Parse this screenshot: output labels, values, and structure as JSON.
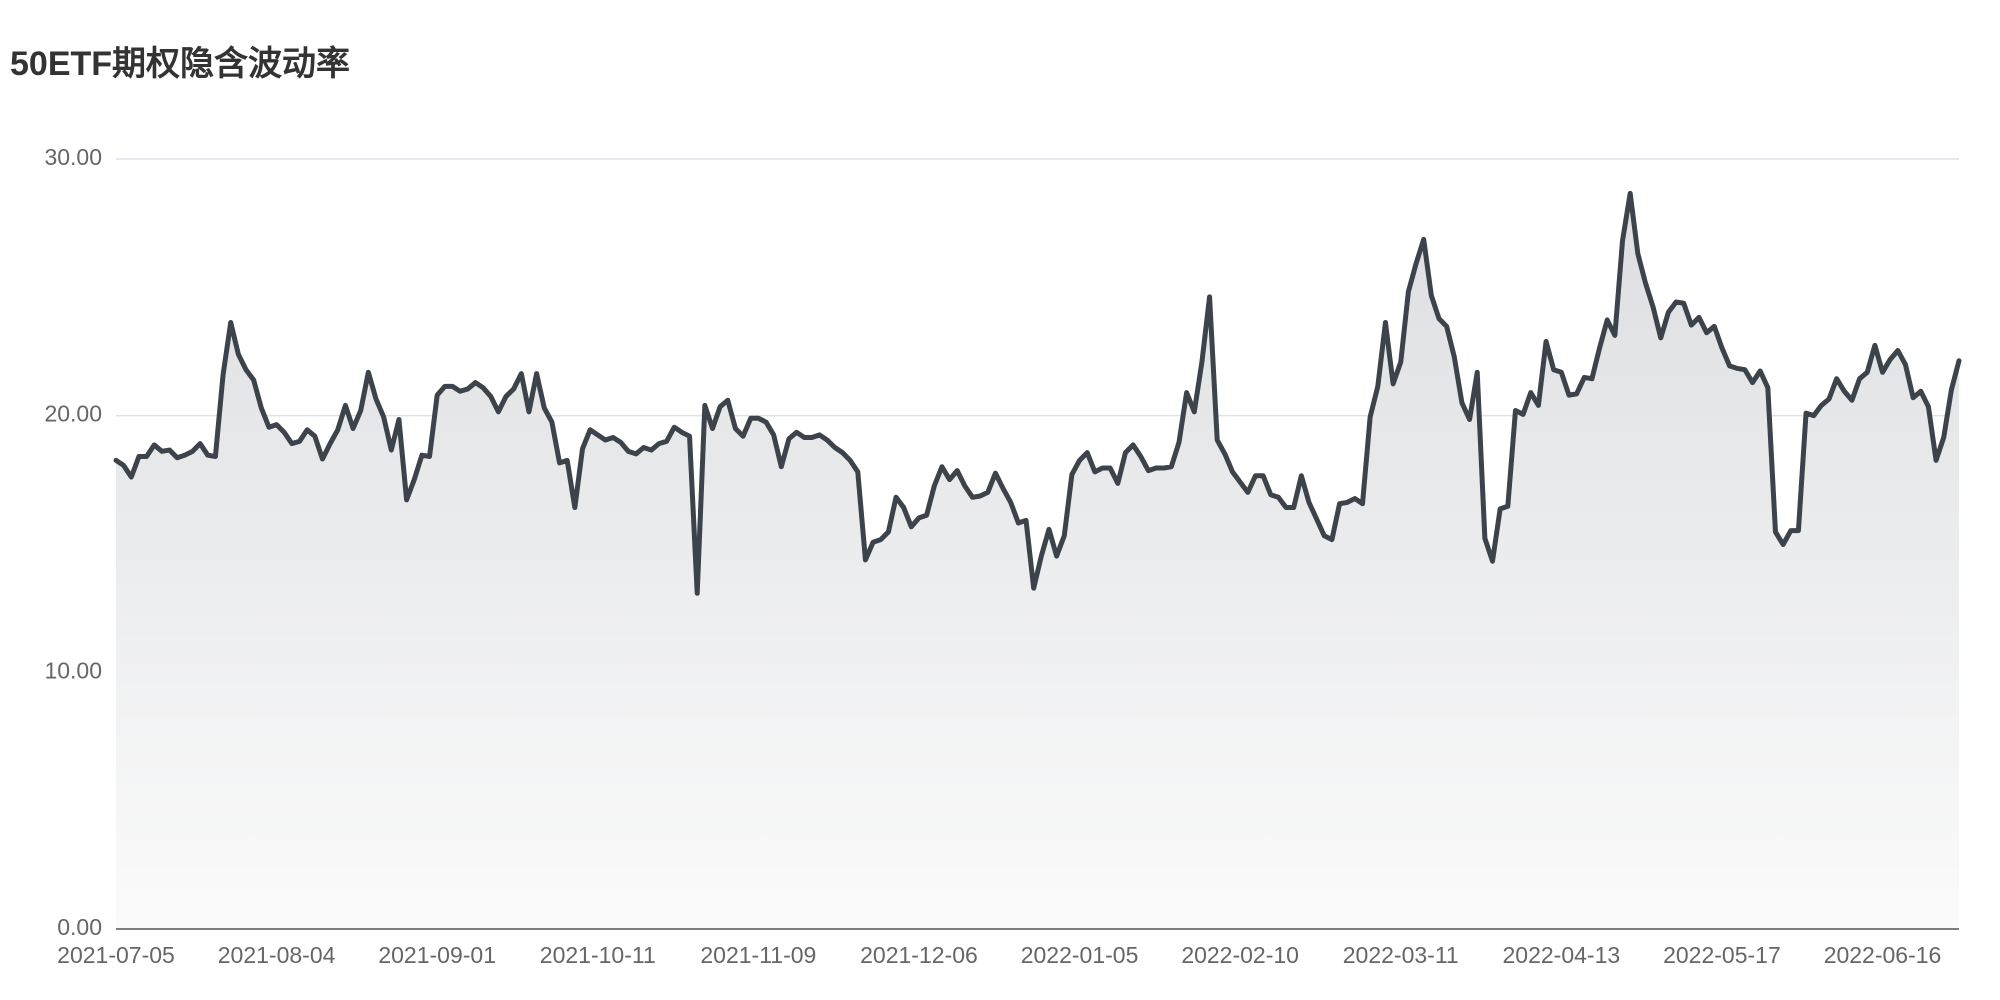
{
  "chart_data": {
    "type": "line",
    "title": "50ETF期权隐含波动率",
    "categories": [
      "2021-07-05",
      null,
      null,
      null,
      null,
      null,
      null,
      null,
      null,
      null,
      null,
      null,
      null,
      null,
      null,
      null,
      null,
      null,
      null,
      null,
      null,
      "2021-08-04",
      null,
      null,
      null,
      null,
      null,
      null,
      null,
      null,
      null,
      null,
      null,
      null,
      null,
      null,
      null,
      null,
      null,
      null,
      null,
      null,
      "2021-09-01",
      null,
      null,
      null,
      null,
      null,
      null,
      null,
      null,
      null,
      null,
      null,
      null,
      null,
      null,
      null,
      null,
      null,
      null,
      null,
      null,
      "2021-10-11",
      null,
      null,
      null,
      null,
      null,
      null,
      null,
      null,
      null,
      null,
      null,
      null,
      null,
      null,
      null,
      null,
      null,
      null,
      null,
      null,
      "2021-11-09",
      null,
      null,
      null,
      null,
      null,
      null,
      null,
      null,
      null,
      null,
      null,
      null,
      null,
      null,
      null,
      null,
      null,
      null,
      null,
      null,
      "2021-12-06",
      null,
      null,
      null,
      null,
      null,
      null,
      null,
      null,
      null,
      null,
      null,
      null,
      null,
      null,
      null,
      null,
      null,
      null,
      null,
      null,
      "2022-01-05",
      null,
      null,
      null,
      null,
      null,
      null,
      null,
      null,
      null,
      null,
      null,
      null,
      null,
      null,
      null,
      null,
      null,
      null,
      null,
      null,
      "2022-02-10",
      null,
      null,
      null,
      null,
      null,
      null,
      null,
      null,
      null,
      null,
      null,
      null,
      null,
      null,
      null,
      null,
      null,
      null,
      null,
      null,
      "2022-03-11",
      null,
      null,
      null,
      null,
      null,
      null,
      null,
      null,
      null,
      null,
      null,
      null,
      null,
      null,
      null,
      null,
      null,
      null,
      null,
      null,
      "2022-04-13",
      null,
      null,
      null,
      null,
      null,
      null,
      null,
      null,
      null,
      null,
      null,
      null,
      null,
      null,
      null,
      null,
      null,
      null,
      null,
      null,
      "2022-05-17",
      null,
      null,
      null,
      null,
      null,
      null,
      null,
      null,
      null,
      null,
      null,
      null,
      null,
      null,
      null,
      null,
      null,
      null,
      null,
      null,
      "2022-06-16",
      null,
      null,
      null,
      null,
      null,
      null,
      null,
      null,
      null,
      null
    ],
    "values": [
      18.26,
      18.06,
      17.61,
      18.41,
      18.41,
      18.86,
      18.61,
      18.66,
      18.36,
      18.46,
      18.61,
      18.91,
      18.46,
      18.41,
      21.59,
      23.63,
      22.39,
      21.79,
      21.39,
      20.3,
      19.55,
      19.65,
      19.35,
      18.91,
      19.0,
      19.45,
      19.2,
      18.31,
      18.91,
      19.45,
      20.4,
      19.5,
      20.2,
      21.69,
      20.65,
      19.95,
      18.66,
      19.85,
      16.72,
      17.51,
      18.46,
      18.41,
      20.8,
      21.14,
      21.14,
      20.95,
      21.04,
      21.29,
      21.09,
      20.75,
      20.15,
      20.75,
      21.04,
      21.64,
      20.15,
      21.64,
      20.3,
      19.75,
      18.16,
      18.26,
      16.42,
      18.71,
      19.45,
      19.25,
      19.05,
      19.15,
      18.96,
      18.61,
      18.51,
      18.76,
      18.66,
      18.91,
      19.0,
      19.55,
      19.35,
      19.2,
      13.08,
      20.4,
      19.5,
      20.35,
      20.6,
      19.5,
      19.2,
      19.9,
      19.9,
      19.75,
      19.25,
      18.01,
      19.1,
      19.35,
      19.15,
      19.15,
      19.25,
      19.05,
      18.76,
      18.56,
      18.26,
      17.81,
      14.38,
      15.07,
      15.17,
      15.47,
      16.82,
      16.42,
      15.67,
      16.02,
      16.12,
      17.26,
      18.01,
      17.51,
      17.86,
      17.26,
      16.82,
      16.87,
      17.01,
      17.76,
      17.16,
      16.62,
      15.82,
      15.92,
      13.28,
      14.53,
      15.57,
      14.53,
      15.32,
      17.71,
      18.26,
      18.56,
      17.81,
      17.96,
      17.96,
      17.36,
      18.56,
      18.86,
      18.41,
      17.86,
      17.96,
      17.96,
      18.01,
      18.96,
      20.9,
      20.15,
      22.09,
      24.63,
      19.05,
      18.51,
      17.81,
      17.41,
      17.01,
      17.66,
      17.66,
      16.92,
      16.82,
      16.42,
      16.42,
      17.66,
      16.62,
      15.97,
      15.32,
      15.17,
      16.57,
      16.62,
      16.77,
      16.57,
      19.95,
      21.14,
      23.63,
      21.24,
      22.09,
      24.83,
      25.92,
      26.87,
      24.68,
      23.78,
      23.48,
      22.29,
      20.5,
      19.85,
      21.69,
      15.22,
      14.33,
      16.37,
      16.47,
      20.2,
      20.05,
      20.9,
      20.4,
      22.89,
      21.79,
      21.69,
      20.8,
      20.85,
      21.49,
      21.44,
      22.64,
      23.73,
      23.13,
      26.82,
      28.66,
      26.32,
      25.17,
      24.23,
      23.03,
      24.03,
      24.43,
      24.38,
      23.53,
      23.83,
      23.23,
      23.48,
      22.64,
      21.94,
      21.84,
      21.79,
      21.29,
      21.74,
      21.09,
      15.47,
      14.98,
      15.52,
      15.52,
      20.1,
      20.0,
      20.4,
      20.65,
      21.44,
      20.95,
      20.6,
      21.44,
      21.69,
      22.74,
      21.69,
      22.19,
      22.54,
      21.99,
      20.7,
      20.95,
      20.35,
      18.26,
      19.15,
      21.0,
      22.14
    ],
    "color": "#3d434b",
    "area": true,
    "grid": true,
    "ylim": [
      0,
      30
    ],
    "yticks": [
      {
        "value": 0,
        "label": "0.00"
      },
      {
        "value": 10,
        "label": "10.00"
      },
      {
        "value": 20,
        "label": "20.00"
      },
      {
        "value": 30,
        "label": "30.00"
      }
    ]
  }
}
